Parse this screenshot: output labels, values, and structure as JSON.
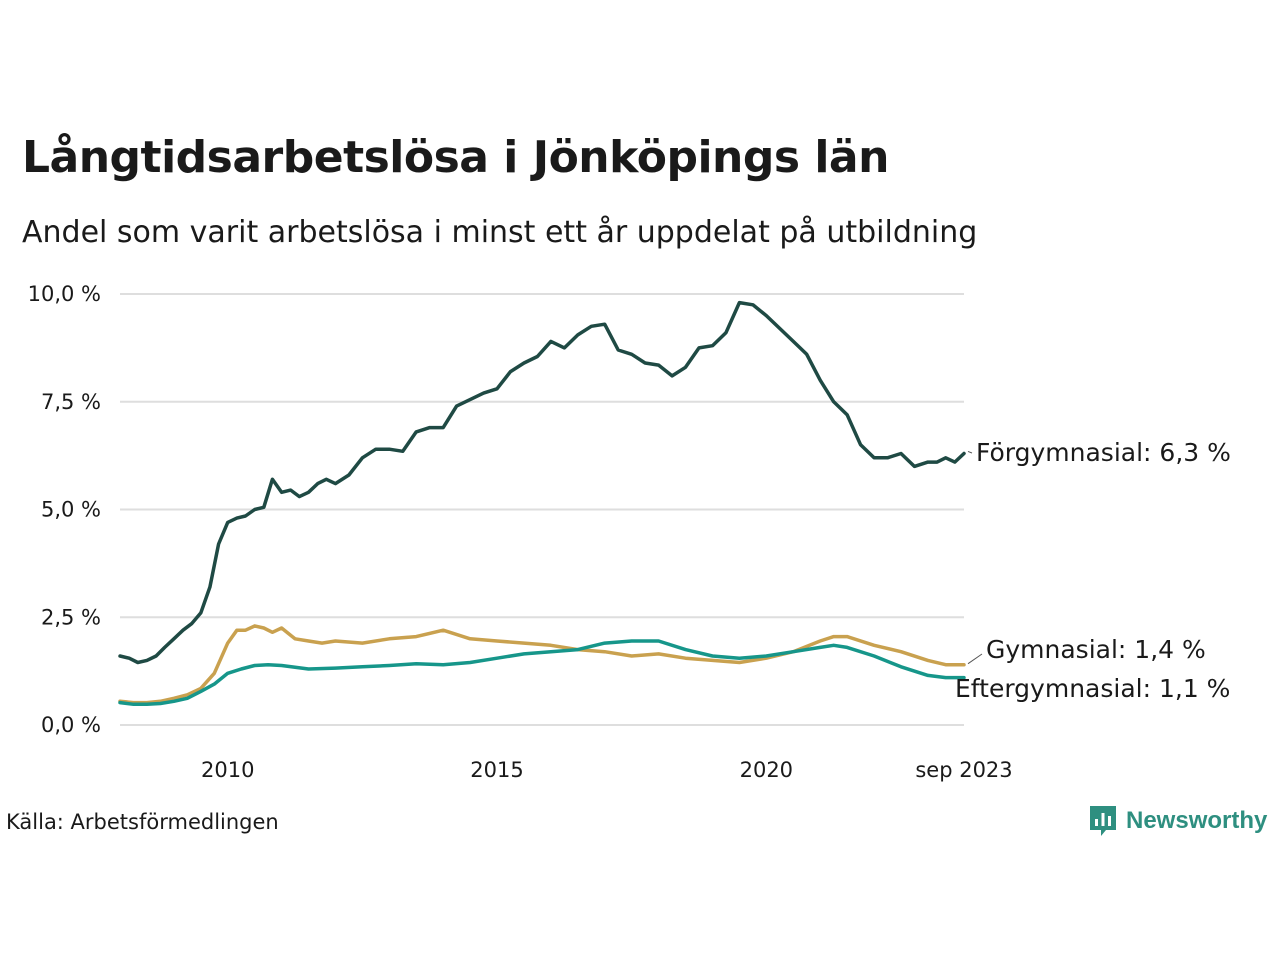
{
  "header": {
    "title": "Långtidsarbetslösa i Jönköpings län",
    "subtitle": "Andel som varit arbetslösa i minst ett år uppdelat på utbildning"
  },
  "footer": {
    "source": "Källa: Arbetsförmedlingen",
    "brand": "Newsworthy"
  },
  "chart_data": {
    "type": "line",
    "title": "Långtidsarbetslösa i Jönköpings län",
    "subtitle": "Andel som varit arbetslösa i minst ett år uppdelat på utbildning",
    "xlabel": "",
    "ylabel": "",
    "ylim": [
      0,
      10
    ],
    "xlim": [
      2008.0,
      2023.67
    ],
    "y_ticks": [
      0,
      2.5,
      5,
      7.5,
      10
    ],
    "y_tick_labels": [
      "0,0 %",
      "2,5 %",
      "5,0 %",
      "7,5 %",
      "10,0 %"
    ],
    "x_ticks": [
      2010,
      2015,
      2020,
      2023.67
    ],
    "x_tick_labels": [
      "2010",
      "2015",
      "2020",
      "sep 2023"
    ],
    "grid": true,
    "legend": "direct labels at line ends (right)",
    "colors": {
      "forgymnasial": "#1f4a44",
      "gymnasial": "#c9a14f",
      "eftergymnasial": "#16968a",
      "grid": "#dedede",
      "brand": "#2e8f80"
    },
    "series": [
      {
        "key": "forgymnasial",
        "name": "Förgymnasial",
        "end_label": "Förgymnasial: 6,3 %",
        "x": [
          2008.0,
          2008.17,
          2008.33,
          2008.5,
          2008.67,
          2008.83,
          2009.0,
          2009.17,
          2009.33,
          2009.5,
          2009.67,
          2009.83,
          2010.0,
          2010.17,
          2010.33,
          2010.5,
          2010.67,
          2010.83,
          2011.0,
          2011.17,
          2011.33,
          2011.5,
          2011.67,
          2011.83,
          2012.0,
          2012.25,
          2012.5,
          2012.75,
          2013.0,
          2013.25,
          2013.5,
          2013.75,
          2014.0,
          2014.25,
          2014.5,
          2014.75,
          2015.0,
          2015.25,
          2015.5,
          2015.75,
          2016.0,
          2016.25,
          2016.5,
          2016.75,
          2017.0,
          2017.25,
          2017.5,
          2017.75,
          2018.0,
          2018.25,
          2018.5,
          2018.75,
          2019.0,
          2019.25,
          2019.5,
          2019.75,
          2020.0,
          2020.25,
          2020.5,
          2020.75,
          2021.0,
          2021.25,
          2021.5,
          2021.75,
          2022.0,
          2022.25,
          2022.5,
          2022.75,
          2023.0,
          2023.17,
          2023.33,
          2023.5,
          2023.67
        ],
        "values": [
          1.6,
          1.55,
          1.45,
          1.5,
          1.6,
          1.8,
          2.0,
          2.2,
          2.35,
          2.6,
          3.2,
          4.2,
          4.7,
          4.8,
          4.85,
          5.0,
          5.05,
          5.7,
          5.4,
          5.45,
          5.3,
          5.4,
          5.6,
          5.7,
          5.6,
          5.8,
          6.2,
          6.4,
          6.4,
          6.35,
          6.8,
          6.9,
          6.9,
          7.4,
          7.55,
          7.7,
          7.8,
          8.2,
          8.4,
          8.55,
          8.9,
          8.75,
          9.05,
          9.25,
          9.3,
          8.7,
          8.6,
          8.4,
          8.35,
          8.1,
          8.3,
          8.75,
          8.8,
          9.1,
          9.8,
          9.75,
          9.5,
          9.2,
          8.9,
          8.6,
          8.0,
          7.5,
          7.2,
          6.5,
          6.2,
          6.2,
          6.3,
          6.0,
          6.1,
          6.1,
          6.2,
          6.1,
          6.3
        ]
      },
      {
        "key": "gymnasial",
        "name": "Gymnasial",
        "end_label": "Gymnasial: 1,4 %",
        "x": [
          2008.0,
          2008.25,
          2008.5,
          2008.75,
          2009.0,
          2009.25,
          2009.5,
          2009.75,
          2010.0,
          2010.17,
          2010.33,
          2010.5,
          2010.67,
          2010.83,
          2011.0,
          2011.25,
          2011.5,
          2011.75,
          2012.0,
          2012.5,
          2013.0,
          2013.5,
          2014.0,
          2014.5,
          2015.0,
          2015.5,
          2016.0,
          2016.5,
          2017.0,
          2017.5,
          2018.0,
          2018.5,
          2019.0,
          2019.5,
          2020.0,
          2020.5,
          2021.0,
          2021.25,
          2021.5,
          2022.0,
          2022.5,
          2023.0,
          2023.33,
          2023.67
        ],
        "values": [
          0.55,
          0.52,
          0.52,
          0.55,
          0.62,
          0.7,
          0.85,
          1.2,
          1.9,
          2.2,
          2.2,
          2.3,
          2.25,
          2.15,
          2.25,
          2.0,
          1.95,
          1.9,
          1.95,
          1.9,
          2.0,
          2.05,
          2.2,
          2.0,
          1.95,
          1.9,
          1.85,
          1.75,
          1.7,
          1.6,
          1.65,
          1.55,
          1.5,
          1.45,
          1.55,
          1.7,
          1.95,
          2.05,
          2.05,
          1.85,
          1.7,
          1.5,
          1.4,
          1.4
        ]
      },
      {
        "key": "eftergymnasial",
        "name": "Eftergymnasial",
        "end_label": "Eftergymnasial: 1,1 %",
        "x": [
          2008.0,
          2008.25,
          2008.5,
          2008.75,
          2009.0,
          2009.25,
          2009.5,
          2009.75,
          2010.0,
          2010.25,
          2010.5,
          2010.75,
          2011.0,
          2011.5,
          2012.0,
          2012.5,
          2013.0,
          2013.5,
          2014.0,
          2014.5,
          2015.0,
          2015.5,
          2016.0,
          2016.5,
          2017.0,
          2017.5,
          2018.0,
          2018.5,
          2019.0,
          2019.5,
          2020.0,
          2020.5,
          2021.0,
          2021.25,
          2021.5,
          2022.0,
          2022.5,
          2023.0,
          2023.33,
          2023.67
        ],
        "values": [
          0.52,
          0.48,
          0.48,
          0.5,
          0.55,
          0.62,
          0.78,
          0.95,
          1.2,
          1.3,
          1.38,
          1.4,
          1.38,
          1.3,
          1.32,
          1.35,
          1.38,
          1.42,
          1.4,
          1.45,
          1.55,
          1.65,
          1.7,
          1.75,
          1.9,
          1.95,
          1.95,
          1.75,
          1.6,
          1.55,
          1.6,
          1.7,
          1.8,
          1.85,
          1.8,
          1.6,
          1.35,
          1.15,
          1.1,
          1.1
        ]
      }
    ]
  }
}
